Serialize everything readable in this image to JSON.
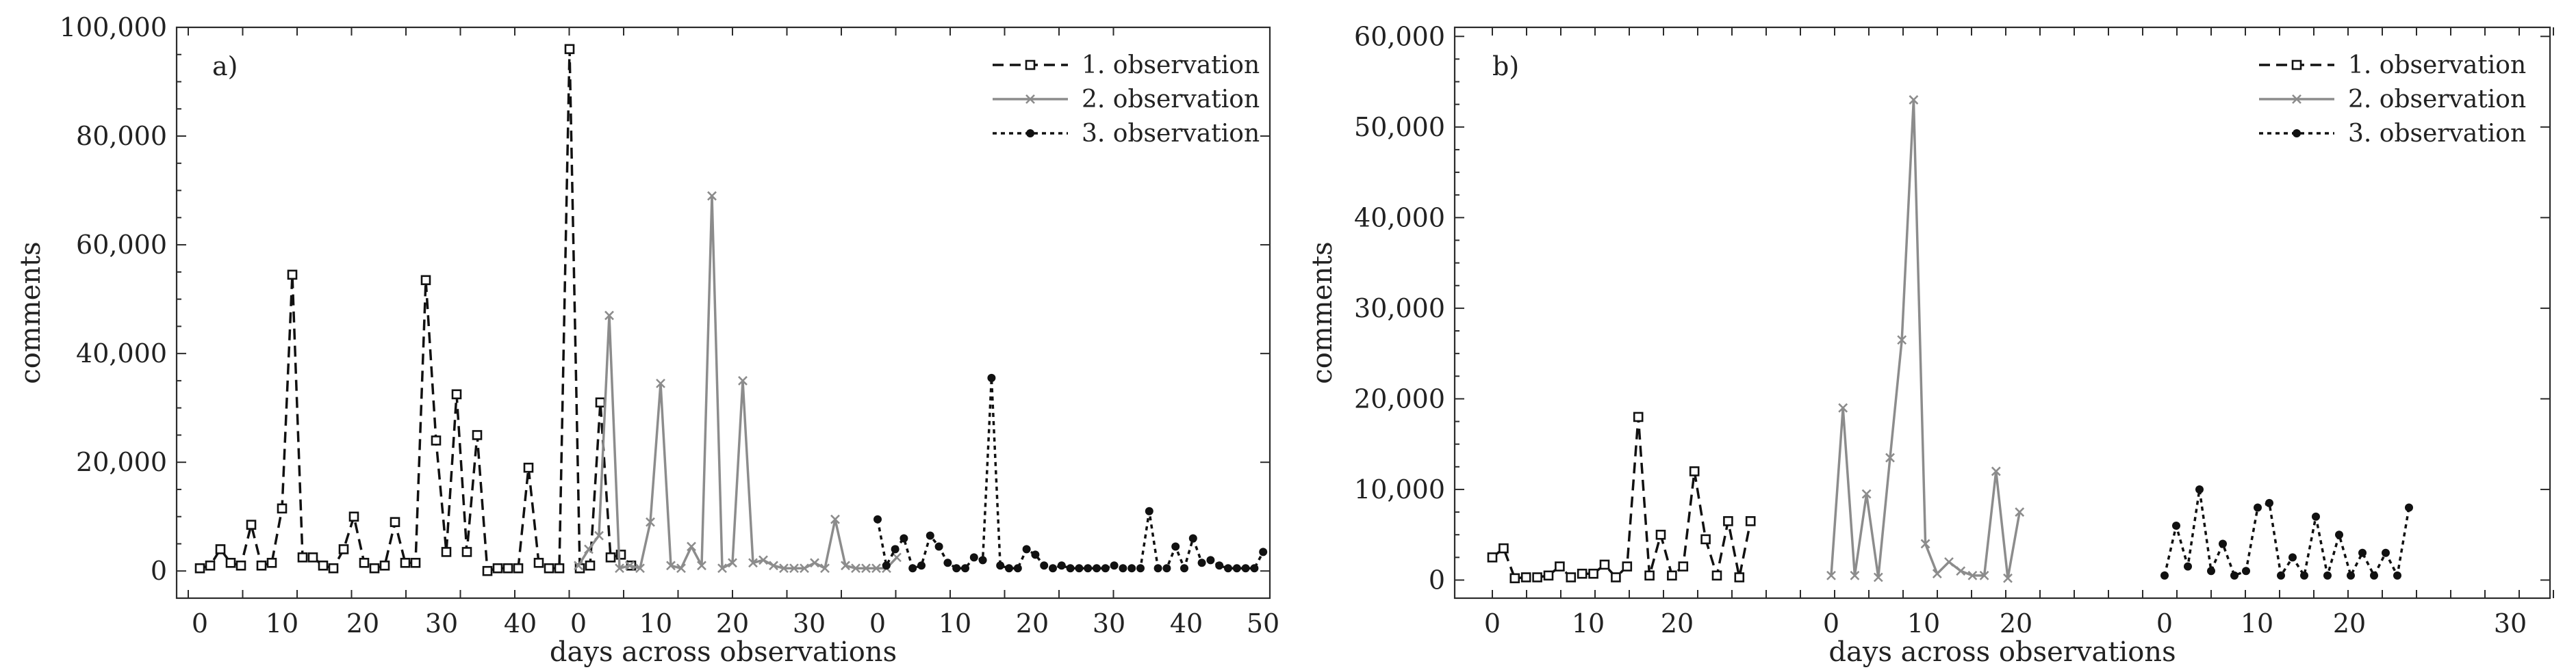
{
  "colors": {
    "black": "#111111",
    "grey": "#8c8c8c"
  },
  "series_names": [
    "1. observation",
    "2. observation",
    "3. observation"
  ],
  "chart_data": [
    {
      "type": "line",
      "panel_label": "a)",
      "xlabel": "days across observations",
      "ylabel": "comments",
      "xlim": [
        -3,
        54
      ],
      "ylim": [
        -5000,
        100000
      ],
      "xticks": [
        0,
        10,
        20,
        30,
        40,
        50
      ],
      "yticks": [
        0,
        20000,
        40000,
        60000,
        80000,
        100000
      ],
      "ytick_labels": [
        "0",
        "20,000",
        "40,000",
        "60,000",
        "80,000",
        "100,000"
      ],
      "legend": "top-right",
      "series": [
        {
          "name": "1. observation",
          "style": "dashed",
          "color": "#111111",
          "marker": "square",
          "x": [
            1,
            2,
            3,
            4,
            5,
            6,
            7,
            8,
            9,
            10,
            11,
            12,
            13,
            14,
            15,
            16,
            17,
            18,
            19,
            20,
            21,
            22,
            23,
            24,
            25,
            26,
            27,
            28,
            29,
            30,
            31,
            32,
            33,
            34,
            35,
            36,
            37,
            38,
            39,
            40,
            41,
            42,
            43
          ],
          "y": [
            500,
            1000,
            4000,
            1500,
            1000,
            8500,
            1000,
            1500,
            11500,
            54500,
            2500,
            2500,
            1000,
            500,
            4000,
            10000,
            1500,
            500,
            1000,
            9000,
            1500,
            1500,
            53500,
            24000,
            3500,
            32500,
            3500,
            25000,
            0,
            500,
            500,
            500,
            19000,
            1500,
            500,
            500,
            96000,
            500,
            1000,
            31000,
            2500,
            3000,
            1000
          ]
        },
        {
          "name": "2. observation",
          "style": "solid",
          "color": "#8c8c8c",
          "marker": "x",
          "x": [
            0,
            1,
            2,
            3,
            4,
            5,
            6,
            7,
            8,
            9,
            10,
            11,
            12,
            13,
            14,
            15,
            16,
            17,
            18,
            19,
            20,
            21,
            22,
            23,
            24,
            25,
            26,
            27,
            28,
            29,
            30,
            31
          ],
          "y": [
            1000,
            4000,
            6500,
            47000,
            500,
            1000,
            500,
            9000,
            34500,
            1000,
            500,
            4500,
            1000,
            69000,
            500,
            1500,
            35000,
            1500,
            2000,
            1000,
            500,
            500,
            500,
            1500,
            500,
            9500,
            1000,
            500,
            500,
            500,
            500,
            2500
          ]
        },
        {
          "name": "3. observation",
          "style": "dotted",
          "color": "#111111",
          "marker": "circle",
          "x": [
            0,
            1,
            2,
            3,
            4,
            5,
            6,
            7,
            8,
            9,
            10,
            11,
            12,
            13,
            14,
            15,
            16,
            17,
            18,
            19,
            20,
            21,
            22,
            23,
            24,
            25,
            26,
            27,
            28,
            29,
            30,
            31,
            32,
            33,
            34,
            35,
            36,
            37,
            38,
            39,
            40,
            41,
            42,
            43,
            44
          ],
          "y": [
            9500,
            1000,
            4000,
            6000,
            500,
            1000,
            6500,
            4500,
            1500,
            500,
            500,
            2500,
            2000,
            35500,
            1000,
            500,
            500,
            4000,
            3000,
            1000,
            500,
            1000,
            500,
            500,
            500,
            500,
            500,
            1000,
            500,
            500,
            500,
            11000,
            500,
            500,
            4500,
            500,
            6000,
            1500,
            2000,
            1000,
            500,
            500,
            500,
            500,
            3500
          ]
        }
      ]
    },
    {
      "type": "line",
      "panel_label": "b)",
      "xlabel": "days across observations",
      "ylabel": "comments",
      "xlim": [
        -3,
        66
      ],
      "ylim": [
        -2000,
        61000
      ],
      "xticks": [
        0,
        10,
        20,
        30,
        40,
        50,
        60
      ],
      "xtick_labels": [
        "0",
        "10",
        "20",
        "0",
        "10",
        "20",
        "0",
        "10",
        "20",
        "30"
      ],
      "xtick_positions": [
        0,
        10,
        20,
        29.5,
        39.5,
        49.5,
        60,
        70,
        80,
        90
      ],
      "yticks": [
        0,
        10000,
        20000,
        30000,
        40000,
        50000,
        60000
      ],
      "ytick_labels": [
        "0",
        "10,000",
        "20,000",
        "30,000",
        "40,000",
        "50,000",
        "60,000"
      ],
      "legend": "top-right",
      "series": [
        {
          "name": "1. observation",
          "style": "dashed",
          "color": "#111111",
          "marker": "square",
          "x": [
            1,
            2,
            3,
            4,
            5,
            6,
            7,
            8,
            9,
            10,
            11,
            12,
            13,
            14,
            15,
            16,
            17,
            18,
            19,
            20,
            21,
            22,
            23,
            24
          ],
          "y": [
            2500,
            3500,
            200,
            300,
            300,
            500,
            1500,
            300,
            700,
            700,
            1700,
            300,
            1500,
            18000,
            500,
            5000,
            500,
            1500,
            12000,
            4500,
            500,
            6500,
            300,
            6500
          ]
        },
        {
          "name": "2. observation",
          "style": "solid",
          "color": "#8c8c8c",
          "marker": "x",
          "x": [
            0,
            1,
            2,
            3,
            4,
            5,
            6,
            7,
            8,
            9,
            10,
            11,
            12,
            13,
            14,
            15,
            16
          ],
          "y": [
            500,
            19000,
            500,
            9500,
            300,
            13500,
            26500,
            53000,
            4000,
            700,
            2000,
            1000,
            500,
            500,
            12000,
            200,
            7500
          ]
        },
        {
          "name": "3. observation",
          "style": "dotted",
          "color": "#111111",
          "marker": "circle",
          "x": [
            0,
            1,
            2,
            3,
            4,
            5,
            6,
            7,
            8,
            9,
            10,
            11,
            12,
            13,
            14,
            15,
            16,
            17,
            18,
            19,
            20,
            21
          ],
          "y": [
            500,
            6000,
            1500,
            10000,
            1000,
            4000,
            500,
            1000,
            8000,
            8500,
            500,
            2500,
            500,
            7000,
            500,
            5000,
            500,
            3000,
            500,
            3000,
            500,
            8000
          ]
        }
      ]
    }
  ]
}
